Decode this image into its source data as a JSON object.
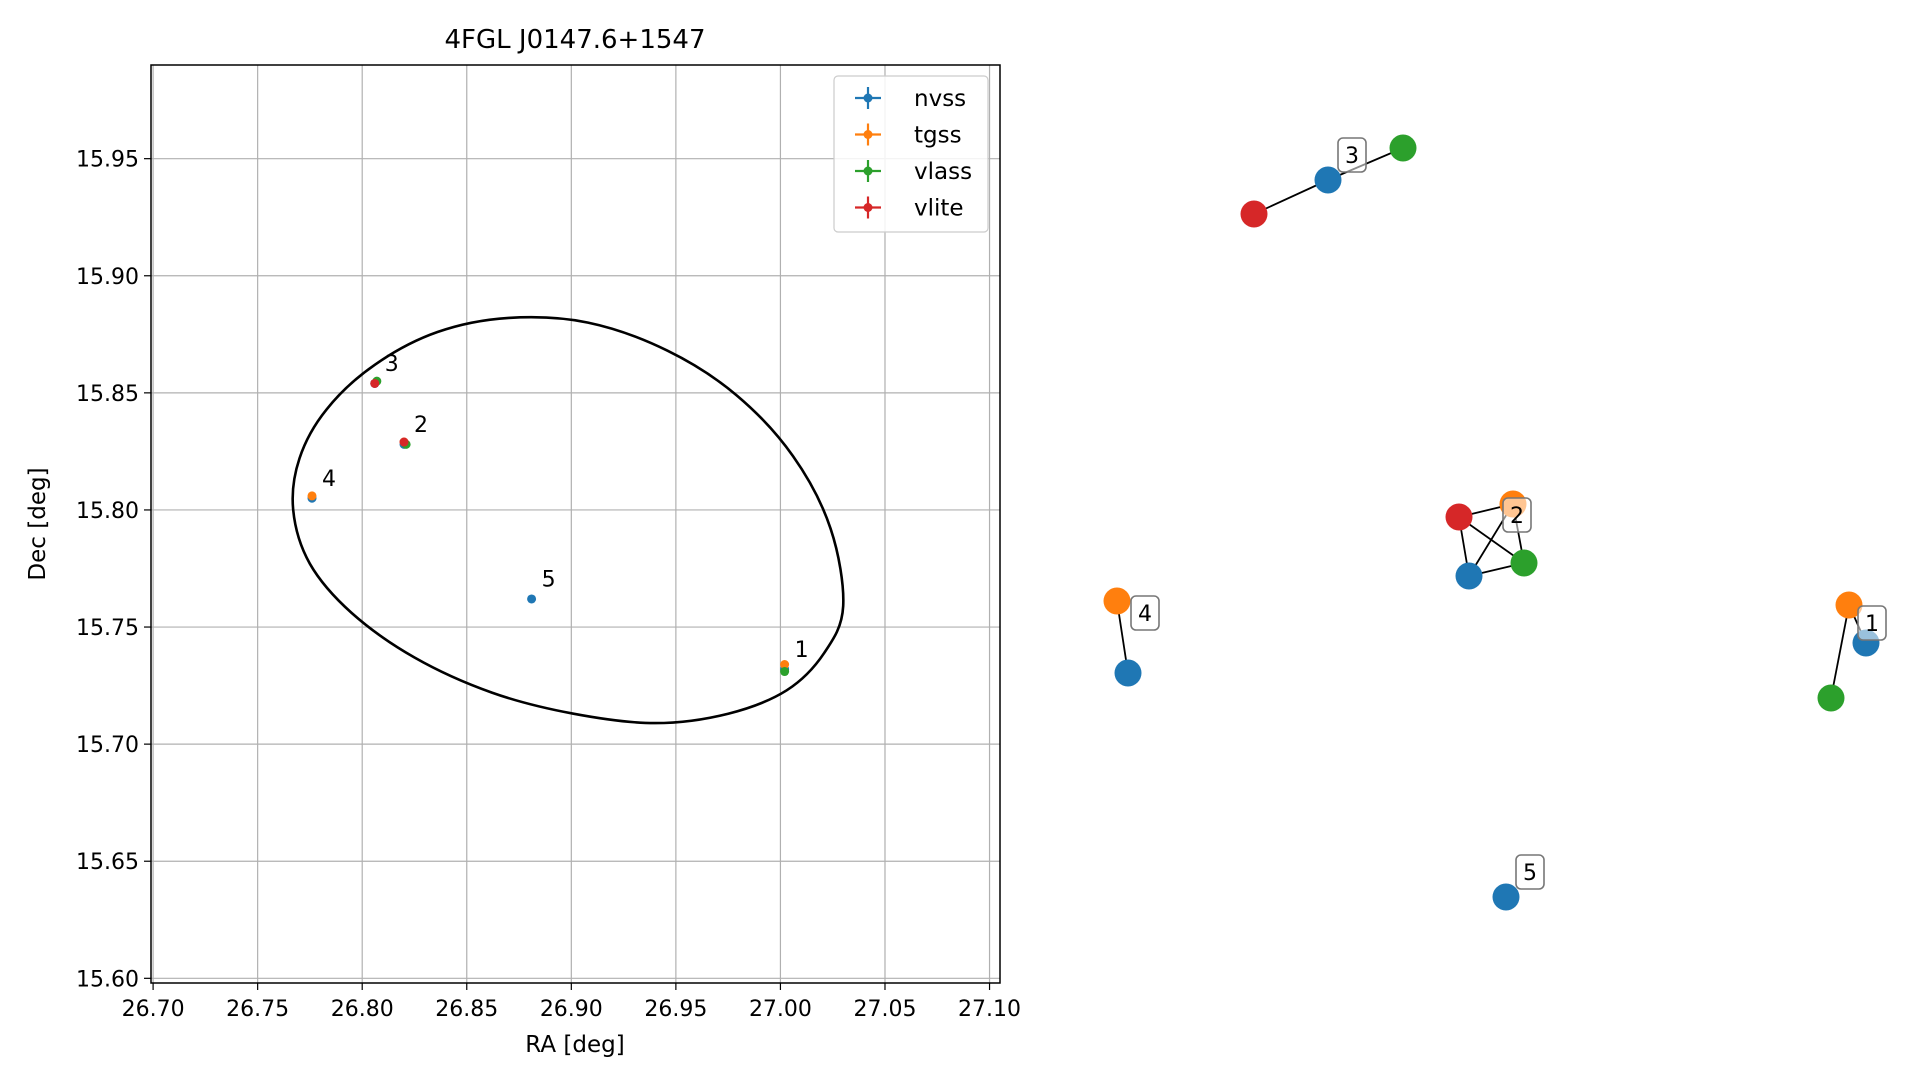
{
  "chart_data": [
    {
      "type": "scatter",
      "title": "4FGL J0147.6+1547",
      "xlabel": "RA [deg]",
      "ylabel": "Dec [deg]",
      "xlim": [
        26.699,
        27.105
      ],
      "ylim": [
        15.598,
        15.99
      ],
      "xticks": [
        26.7,
        26.75,
        26.8,
        26.85,
        26.9,
        26.95,
        27.0,
        27.05,
        27.1
      ],
      "xtick_labels": [
        "26.70",
        "26.75",
        "26.80",
        "26.85",
        "26.90",
        "26.95",
        "27.00",
        "27.05",
        "27.10"
      ],
      "yticks": [
        15.6,
        15.65,
        15.7,
        15.75,
        15.8,
        15.85,
        15.9,
        15.95
      ],
      "ytick_labels": [
        "15.60",
        "15.65",
        "15.70",
        "15.75",
        "15.80",
        "15.85",
        "15.90",
        "15.95"
      ],
      "grid": true,
      "legend_position": "top-right",
      "series": [
        {
          "name": "nvss",
          "color": "#1f77b4",
          "points": [
            {
              "x": 26.776,
              "y": 15.805
            },
            {
              "x": 26.806,
              "y": 15.854
            },
            {
              "x": 26.82,
              "y": 15.828
            },
            {
              "x": 26.881,
              "y": 15.762
            },
            {
              "x": 27.002,
              "y": 15.732
            }
          ]
        },
        {
          "name": "tgss",
          "color": "#ff7f0e",
          "points": [
            {
              "x": 26.776,
              "y": 15.806
            },
            {
              "x": 26.82,
              "y": 15.829
            },
            {
              "x": 27.002,
              "y": 15.734
            }
          ]
        },
        {
          "name": "vlass",
          "color": "#2ca02c",
          "points": [
            {
              "x": 26.807,
              "y": 15.855
            },
            {
              "x": 26.821,
              "y": 15.828
            },
            {
              "x": 27.002,
              "y": 15.731
            }
          ]
        },
        {
          "name": "vlite",
          "color": "#d62728",
          "points": [
            {
              "x": 26.806,
              "y": 15.854
            },
            {
              "x": 26.82,
              "y": 15.829
            }
          ]
        }
      ],
      "ellipse": {
        "color": "#000000",
        "points": [
          [
            27.03,
            15.759
          ],
          [
            27.024,
            15.792
          ],
          [
            27.006,
            15.823
          ],
          [
            26.979,
            15.849
          ],
          [
            26.946,
            15.868
          ],
          [
            26.908,
            15.88
          ],
          [
            26.87,
            15.882
          ],
          [
            26.836,
            15.876
          ],
          [
            26.806,
            15.862
          ],
          [
            26.783,
            15.843
          ],
          [
            26.77,
            15.822
          ],
          [
            26.767,
            15.8
          ],
          [
            26.775,
            15.777
          ],
          [
            26.795,
            15.756
          ],
          [
            26.825,
            15.737
          ],
          [
            26.862,
            15.722
          ],
          [
            26.901,
            15.713
          ],
          [
            26.94,
            15.709
          ],
          [
            26.975,
            15.713
          ],
          [
            27.003,
            15.723
          ],
          [
            27.021,
            15.739
          ],
          [
            27.03,
            15.759
          ]
        ]
      },
      "annotations": [
        {
          "text": "1",
          "x": 27.002,
          "y": 15.733
        },
        {
          "text": "2",
          "x": 26.82,
          "y": 15.829
        },
        {
          "text": "3",
          "x": 26.806,
          "y": 15.855
        },
        {
          "text": "4",
          "x": 26.776,
          "y": 15.806
        },
        {
          "text": "5",
          "x": 26.881,
          "y": 15.763
        }
      ]
    },
    {
      "type": "network",
      "nodes": [
        {
          "id": "g3v",
          "color": "#2ca02c"
        },
        {
          "id": "g3n",
          "color": "#1f77b4"
        },
        {
          "id": "g3r",
          "color": "#d62728"
        },
        {
          "id": "g2t",
          "color": "#ff7f0e"
        },
        {
          "id": "g2r",
          "color": "#d62728"
        },
        {
          "id": "g2n",
          "color": "#1f77b4"
        },
        {
          "id": "g2v",
          "color": "#2ca02c"
        },
        {
          "id": "g4t",
          "color": "#ff7f0e"
        },
        {
          "id": "g4n",
          "color": "#1f77b4"
        },
        {
          "id": "g1t",
          "color": "#ff7f0e"
        },
        {
          "id": "g1n",
          "color": "#1f77b4"
        },
        {
          "id": "g1v",
          "color": "#2ca02c"
        },
        {
          "id": "g5n",
          "color": "#1f77b4"
        }
      ],
      "edges": [
        [
          "g3r",
          "g3n"
        ],
        [
          "g3n",
          "g3v"
        ],
        [
          "g2r",
          "g2t"
        ],
        [
          "g2r",
          "g2n"
        ],
        [
          "g2r",
          "g2v"
        ],
        [
          "g2t",
          "g2n"
        ],
        [
          "g2t",
          "g2v"
        ],
        [
          "g2n",
          "g2v"
        ],
        [
          "g4t",
          "g4n"
        ],
        [
          "g1t",
          "g1n"
        ],
        [
          "g1t",
          "g1v"
        ]
      ],
      "labels": [
        {
          "text": "3",
          "node": "g3n"
        },
        {
          "text": "2",
          "node": "g2t"
        },
        {
          "text": "4",
          "node": "g4t"
        },
        {
          "text": "1",
          "node": "g1n"
        },
        {
          "text": "5",
          "node": "g5n"
        }
      ]
    }
  ]
}
